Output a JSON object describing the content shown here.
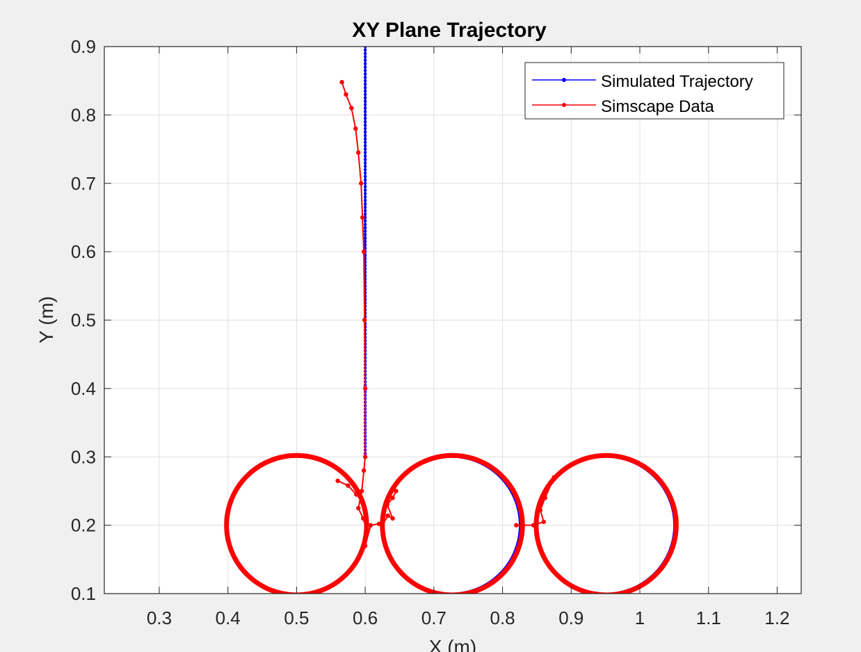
{
  "chart_data": {
    "type": "line",
    "title": "XY Plane Trajectory",
    "xlabel": "X (m)",
    "ylabel": "Y (m)",
    "xlim": [
      0.22,
      1.235
    ],
    "ylim": [
      0.1,
      0.9
    ],
    "xticks": [
      0.3,
      0.4,
      0.5,
      0.6,
      0.7,
      0.8,
      0.9,
      1.0,
      1.1,
      1.2
    ],
    "xtick_labels": [
      "0.3",
      "0.4",
      "0.5",
      "0.6",
      "0.7",
      "0.8",
      "0.9",
      "1",
      "1.1",
      "1.2"
    ],
    "yticks": [
      0.1,
      0.2,
      0.3,
      0.4,
      0.5,
      0.6,
      0.7,
      0.8,
      0.9
    ],
    "ytick_labels": [
      "0.1",
      "0.2",
      "0.3",
      "0.4",
      "0.5",
      "0.6",
      "0.7",
      "0.8",
      "0.9"
    ],
    "grid": true,
    "legend_position": "top-right",
    "series": [
      {
        "name": "Simulated Trajectory",
        "color": "#0000ff",
        "marker": "dot",
        "segments": [
          {
            "kind": "line",
            "points": [
              [
                0.6,
                0.9
              ],
              [
                0.6,
                0.3
              ]
            ]
          },
          {
            "kind": "circle",
            "center": [
              0.5,
              0.2
            ],
            "radius": 0.1
          },
          {
            "kind": "circle",
            "center": [
              0.725,
              0.2
            ],
            "radius": 0.1
          },
          {
            "kind": "circle",
            "center": [
              0.95,
              0.2
            ],
            "radius": 0.1
          }
        ]
      },
      {
        "name": "Simscape Data",
        "color": "#ff0000",
        "marker": "dot",
        "segments": [
          {
            "kind": "line",
            "points": [
              [
                0.566,
                0.848
              ],
              [
                0.572,
                0.83
              ],
              [
                0.58,
                0.81
              ],
              [
                0.586,
                0.78
              ],
              [
                0.59,
                0.745
              ],
              [
                0.594,
                0.7
              ],
              [
                0.596,
                0.65
              ],
              [
                0.598,
                0.6
              ],
              [
                0.599,
                0.5
              ],
              [
                0.6,
                0.4
              ],
              [
                0.6,
                0.3
              ],
              [
                0.598,
                0.28
              ],
              [
                0.595,
                0.25
              ],
              [
                0.59,
                0.225
              ],
              [
                0.597,
                0.21
              ],
              [
                0.603,
                0.19
              ],
              [
                0.6,
                0.17
              ],
              [
                0.608,
                0.2
              ],
              [
                0.62,
                0.202
              ],
              [
                0.625,
                0.2
              ]
            ]
          },
          {
            "kind": "circle",
            "center": [
              0.5,
              0.2
            ],
            "radius": 0.102
          },
          {
            "kind": "circle",
            "center": [
              0.727,
              0.2
            ],
            "radius": 0.102
          },
          {
            "kind": "circle",
            "center": [
              0.951,
              0.2
            ],
            "radius": 0.102
          },
          {
            "kind": "line",
            "points": [
              [
                0.625,
                0.2
              ],
              [
                0.633,
                0.214
              ],
              [
                0.64,
                0.21
              ],
              [
                0.632,
                0.23
              ],
              [
                0.64,
                0.24
              ],
              [
                0.645,
                0.25
              ]
            ]
          },
          {
            "kind": "line",
            "points": [
              [
                0.82,
                0.2
              ],
              [
                0.845,
                0.2
              ],
              [
                0.86,
                0.205
              ],
              [
                0.855,
                0.222
              ],
              [
                0.862,
                0.24
              ],
              [
                0.875,
                0.27
              ]
            ]
          },
          {
            "kind": "line",
            "points": [
              [
                0.56,
                0.265
              ],
              [
                0.575,
                0.258
              ],
              [
                0.587,
                0.245
              ],
              [
                0.595,
                0.235
              ]
            ]
          }
        ]
      }
    ]
  }
}
